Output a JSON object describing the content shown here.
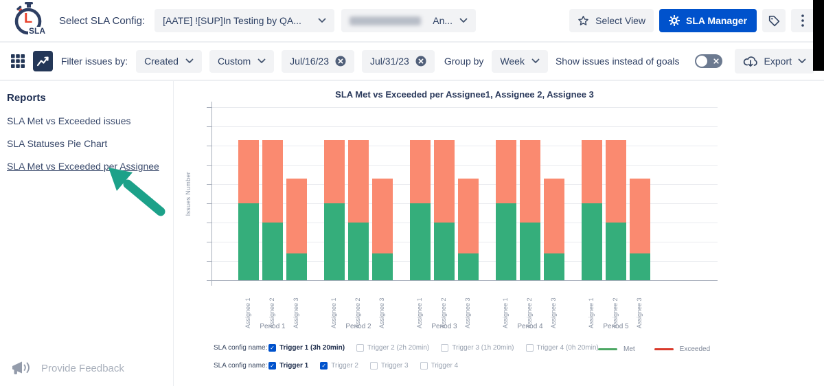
{
  "header": {
    "logo_l": "L",
    "logo_sla": "SLA",
    "select_config_label": "Select SLA Config:",
    "config_value": "[AATE] ![SUP]In Testing by QA...",
    "assignee_value": "An...",
    "assignee_redacted": true,
    "select_view": "Select View",
    "sla_manager": "SLA Manager"
  },
  "toolbar": {
    "filter_label": "Filter issues by:",
    "created_value": "Created",
    "custom_value": "Custom",
    "date_from": "Jul/16/23",
    "date_to": "Jul/31/23",
    "group_by_label": "Group by",
    "group_value": "Week",
    "toggle_label": "Show issues instead of goals",
    "toggle_state": "off",
    "export_label": "Export"
  },
  "sidebar": {
    "heading": "Reports",
    "items": [
      {
        "label": "SLA Met vs Exceeded issues",
        "active": false
      },
      {
        "label": "SLA Statuses Pie Chart",
        "active": false
      },
      {
        "label": "SLA Met vs Exceeded per Assignee",
        "active": true
      }
    ],
    "feedback_label": "Provide Feedback"
  },
  "chart_data": {
    "type": "bar",
    "stacked": true,
    "title": "SLA Met vs Exceeded per Assignee1, Assignee 2, Assignee 3",
    "ylabel": "Issues Number",
    "xlabel": "",
    "grid": true,
    "y_tick_labels_visible": false,
    "groups": [
      "Period 1",
      "Period 2",
      "Period 3",
      "Period 4",
      "Period 5"
    ],
    "bars_per_group": [
      "Assignee 1",
      "Assignee 2",
      "Assignee 3"
    ],
    "series": [
      {
        "name": "Met",
        "color": "#35ae7b",
        "values": [
          [
            4,
            3,
            1.4
          ],
          [
            4,
            3,
            1.4
          ],
          [
            4,
            3,
            1.4
          ],
          [
            4,
            3,
            1.4
          ],
          [
            4,
            3,
            1.4
          ]
        ]
      },
      {
        "name": "Exceeded",
        "color": "#fa8a70",
        "values": [
          [
            3.3,
            4.3,
            3.9
          ],
          [
            3.3,
            4.3,
            3.9
          ],
          [
            3.3,
            4.3,
            3.9
          ],
          [
            3.3,
            4.3,
            3.9
          ],
          [
            3.3,
            4.3,
            3.9
          ]
        ]
      }
    ],
    "value_note": "y-axis has unlabeled ticks; values estimated in gridline units, identical across the 5 periods"
  },
  "config_rows": [
    {
      "label": "SLA config name:",
      "options": [
        {
          "label": "Trigger 1 (3h 20min)",
          "checked": true,
          "muted": false
        },
        {
          "label": "Trigger 2 (2h 20min)",
          "checked": false,
          "muted": true
        },
        {
          "label": "Trigger 3 (1h 20min)",
          "checked": false,
          "muted": true
        },
        {
          "label": "Trigger 4 (0h 20min)",
          "checked": false,
          "muted": true
        }
      ]
    },
    {
      "label": "SLA config name:",
      "options": [
        {
          "label": "Trigger 1",
          "checked": true,
          "muted": false
        },
        {
          "label": "Trigger 2",
          "checked": true,
          "muted": true
        },
        {
          "label": "Trigger 3",
          "checked": false,
          "muted": true
        },
        {
          "label": "Trigger 4",
          "checked": false,
          "muted": true
        }
      ]
    }
  ],
  "legend": {
    "met": "Met",
    "exceeded": "Exceeded"
  },
  "colors": {
    "primary_blue": "#0052cc",
    "navy_text": "#2e3f63",
    "met_bar": "#35ae7b",
    "exceeded_bar": "#fa8a70",
    "legend_met_line": "#4ca764",
    "legend_exceeded_line": "#d93a2b",
    "arrow_annotation": "#1ca189",
    "selected_view_bg": "#243757"
  }
}
